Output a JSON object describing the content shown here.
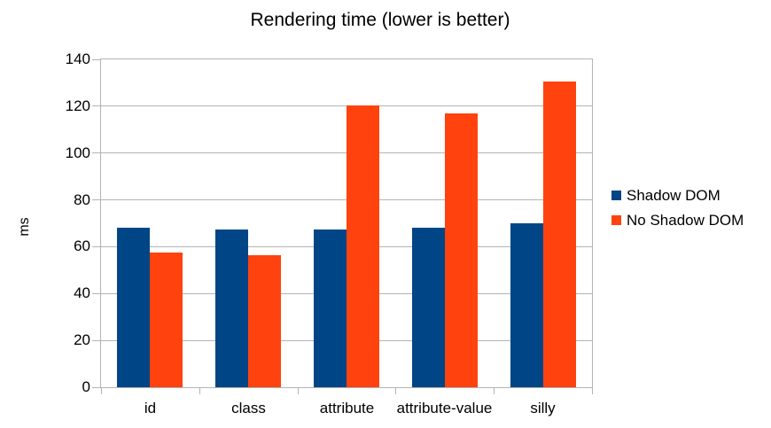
{
  "chart_data": {
    "type": "bar",
    "title": "Rendering time (lower is better)",
    "categories": [
      "id",
      "class",
      "attribute",
      "attribute-value",
      "silly"
    ],
    "series": [
      {
        "name": "Shadow DOM",
        "color": "#004586",
        "values": [
          68,
          67.5,
          67.5,
          68,
          70
        ]
      },
      {
        "name": "No Shadow DOM",
        "color": "#FF420E",
        "values": [
          57.5,
          56.5,
          120.5,
          117,
          130.5
        ]
      }
    ],
    "xlabel": "",
    "ylabel": "ms",
    "ylim": [
      0,
      140
    ],
    "ytick_step": 20,
    "ytick_labels": [
      "0",
      "20",
      "40",
      "60",
      "80",
      "100",
      "120",
      "140"
    ],
    "grid": "horizontal",
    "grid_color": "#b3b3b3",
    "legend_position": "right",
    "background_color": "#ffffff",
    "text_color": "#000000"
  }
}
